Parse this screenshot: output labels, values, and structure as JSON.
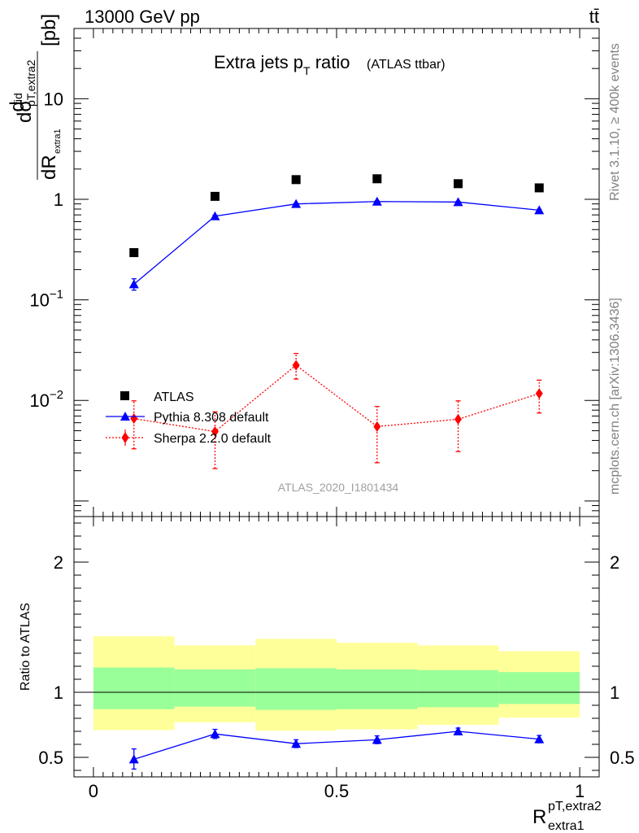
{
  "header": {
    "left": "13000 GeV pp",
    "right": "tt̄"
  },
  "side_labels": {
    "rivet": "Rivet 3.1.10, ≥ 400k events",
    "mcplots": "mcplots.cern.ch [arXiv:1306.3436]"
  },
  "chart_data": [
    {
      "type": "scatter",
      "title": "Extra jets p",
      "title_sub": "T",
      "title_tail": " ratio",
      "subtitle": "(ATLAS ttbar)",
      "watermark": "ATLAS_2020_I1801434",
      "ylabel": {
        "num_d": "d",
        "num_sigma": "σ",
        "sup_fid": "fid",
        "sub_num": "pT,extra2",
        "den_d": "d",
        "den_R": "R",
        "sub_den": "extra1",
        "unit": "[pb]"
      },
      "yscale": "log",
      "ylim": [
        0.0007,
        50
      ],
      "xlim": [
        -0.04,
        1.04
      ],
      "yticks": [
        {
          "v": 10,
          "base": "10",
          "exp": ""
        },
        {
          "v": 1,
          "base": "1",
          "exp": ""
        },
        {
          "v": 0.1,
          "base": "10",
          "exp": "−1"
        },
        {
          "v": 0.01,
          "base": "10",
          "exp": "−2"
        }
      ],
      "legend": {
        "position": "lower-left",
        "entries": [
          "ATLAS",
          "Pythia 8.308 default",
          "Sherpa 2.2.0 default"
        ]
      },
      "series": [
        {
          "name": "ATLAS",
          "color": "#000000",
          "marker": "square",
          "x": [
            0.0833,
            0.25,
            0.4167,
            0.5833,
            0.75,
            0.9167
          ],
          "y": [
            0.295,
            1.07,
            1.57,
            1.6,
            1.43,
            1.3
          ]
        },
        {
          "name": "Pythia 8.308 default",
          "color": "#0000ff",
          "marker": "triangle",
          "line": "solid",
          "x": [
            0.0833,
            0.25,
            0.4167,
            0.5833,
            0.75,
            0.9167
          ],
          "y": [
            0.143,
            0.68,
            0.9,
            0.95,
            0.94,
            0.78
          ],
          "yerr_lo": [
            0.125,
            0.665,
            0.885,
            0.935,
            0.925,
            0.765
          ],
          "yerr_hi": [
            0.162,
            0.695,
            0.915,
            0.965,
            0.955,
            0.795
          ]
        },
        {
          "name": "Sherpa 2.2.0 default",
          "color": "#ff0000",
          "marker": "diamond",
          "line": "dotted",
          "x": [
            0.0833,
            0.25,
            0.4167,
            0.5833,
            0.75,
            0.9167
          ],
          "y": [
            0.0066,
            0.0049,
            0.0224,
            0.0055,
            0.0065,
            0.0117
          ],
          "yerr_lo": [
            0.0033,
            0.0021,
            0.0163,
            0.0024,
            0.0031,
            0.0075
          ],
          "yerr_hi": [
            0.0099,
            0.0077,
            0.0293,
            0.0087,
            0.0099,
            0.0159
          ]
        }
      ]
    },
    {
      "type": "scatter",
      "ylabel": "Ratio to ATLAS",
      "xlabel": {
        "base": "R",
        "sup": "pT,extra2",
        "sub": "extra1"
      },
      "yscale": "linear",
      "ylim": [
        0.35,
        2.35
      ],
      "xlim": [
        -0.04,
        1.04
      ],
      "yticks": [
        "0.5",
        "1",
        "2"
      ],
      "ytick_values": [
        0.5,
        1,
        2
      ],
      "xticks": [
        "0",
        "0.5",
        "1"
      ],
      "xtick_values": [
        0,
        0.5,
        1
      ],
      "reference_line": 1,
      "bands": {
        "edges": [
          0,
          0.1667,
          0.3333,
          0.5,
          0.6667,
          0.8333,
          1.0
        ],
        "green_lo": [
          0.87,
          0.89,
          0.865,
          0.87,
          0.885,
          0.91
        ],
        "green_hi": [
          1.19,
          1.175,
          1.185,
          1.175,
          1.17,
          1.155
        ],
        "yellow_lo": [
          0.71,
          0.77,
          0.705,
          0.715,
          0.75,
          0.805
        ],
        "yellow_hi": [
          1.43,
          1.36,
          1.41,
          1.38,
          1.36,
          1.315
        ],
        "green_color": "#99ff99",
        "yellow_color": "#ffff99"
      },
      "series": [
        {
          "name": "Pythia 8.308 default",
          "color": "#0000ff",
          "marker": "triangle",
          "line": "solid",
          "x": [
            0.0833,
            0.25,
            0.4167,
            0.5833,
            0.75,
            0.9167
          ],
          "y": [
            0.485,
            0.68,
            0.605,
            0.635,
            0.7,
            0.64
          ],
          "yerr_lo": [
            0.41,
            0.645,
            0.575,
            0.605,
            0.675,
            0.612
          ],
          "yerr_hi": [
            0.565,
            0.715,
            0.635,
            0.665,
            0.725,
            0.668
          ]
        }
      ]
    }
  ]
}
